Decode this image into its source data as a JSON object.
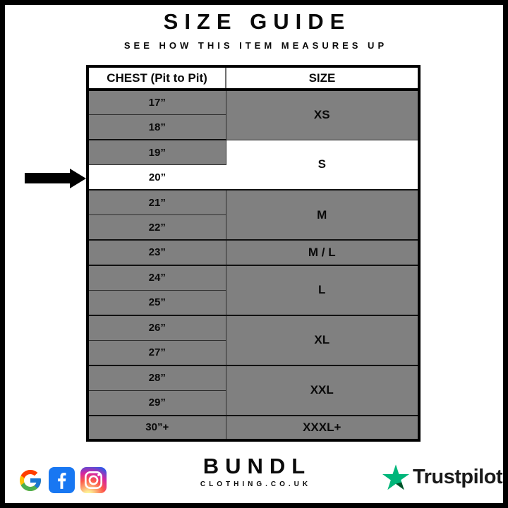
{
  "title": "SIZE GUIDE",
  "subtitle": "SEE HOW THIS ITEM MEASURES UP",
  "table": {
    "headers": {
      "chest": "CHEST (Pit to Pit)",
      "size": "SIZE"
    },
    "groups": [
      {
        "size": "XS",
        "chest": [
          "17”",
          "18”"
        ],
        "size_highlighted": false,
        "highlighted_chest": null
      },
      {
        "size": "S",
        "chest": [
          "19”",
          "20”"
        ],
        "size_highlighted": true,
        "highlighted_chest": "20”"
      },
      {
        "size": "M",
        "chest": [
          "21”",
          "22”"
        ],
        "size_highlighted": false,
        "highlighted_chest": null
      },
      {
        "size": "M / L",
        "chest": [
          "23”"
        ],
        "size_highlighted": false,
        "highlighted_chest": null
      },
      {
        "size": "L",
        "chest": [
          "24”",
          "25”"
        ],
        "size_highlighted": false,
        "highlighted_chest": null
      },
      {
        "size": "XL",
        "chest": [
          "26”",
          "27”"
        ],
        "size_highlighted": false,
        "highlighted_chest": null
      },
      {
        "size": "XXL",
        "chest": [
          "28”",
          "29”"
        ],
        "size_highlighted": false,
        "highlighted_chest": null
      },
      {
        "size": "XXXL+",
        "chest": [
          "30”+"
        ],
        "size_highlighted": false,
        "highlighted_chest": null
      }
    ],
    "arrow_target": "20”"
  },
  "colors": {
    "row_gray": "#808080",
    "highlight_white": "#ffffff",
    "border_black": "#000000",
    "facebook_blue": "#1877F2",
    "trustpilot_green": "#00B67A",
    "trustpilot_dark": "#005128"
  },
  "footer": {
    "brand": {
      "name": "BUNDL",
      "domain": "CLOTHING.CO.UK"
    },
    "icons": [
      "google-icon",
      "facebook-icon",
      "instagram-icon"
    ],
    "trustpilot": {
      "label": "Trustpilot"
    }
  }
}
